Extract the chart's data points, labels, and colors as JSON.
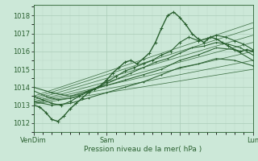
{
  "xlabel": "Pression niveau de la mer( hPa )",
  "ylim": [
    1011.5,
    1018.6
  ],
  "xlim": [
    0,
    72
  ],
  "yticks": [
    1012,
    1013,
    1014,
    1015,
    1016,
    1017,
    1018
  ],
  "xtick_positions": [
    0,
    24,
    48,
    72
  ],
  "xtick_labels": [
    "VenDim",
    "Sam",
    "",
    "Lun"
  ],
  "bg_color": "#cce8d8",
  "grid_major_color": "#aaccb8",
  "grid_minor_color": "#bcd8c8",
  "line_color": "#2a6030",
  "straight_lines": [
    {
      "x0": 0,
      "y0": 1013.05,
      "x1": 72,
      "y1": 1015.0
    },
    {
      "x0": 0,
      "y0": 1013.1,
      "x1": 72,
      "y1": 1015.5
    },
    {
      "x0": 0,
      "y0": 1013.15,
      "x1": 72,
      "y1": 1016.0
    },
    {
      "x0": 0,
      "y0": 1013.2,
      "x1": 72,
      "y1": 1016.5
    },
    {
      "x0": 0,
      "y0": 1013.3,
      "x1": 72,
      "y1": 1016.9
    },
    {
      "x0": 0,
      "y0": 1013.4,
      "x1": 72,
      "y1": 1017.3
    },
    {
      "x0": 0,
      "y0": 1013.5,
      "x1": 72,
      "y1": 1017.6
    }
  ],
  "wavy_series": [
    {
      "x": [
        0,
        2,
        4,
        6,
        8,
        10,
        12,
        14,
        16,
        18,
        20,
        22,
        24,
        26,
        28,
        30,
        32,
        34,
        36,
        38,
        40,
        42,
        44,
        46,
        48,
        50,
        52,
        54,
        56,
        58,
        60,
        62,
        64,
        66,
        68,
        70,
        72
      ],
      "y": [
        1013.0,
        1012.9,
        1012.6,
        1012.2,
        1012.1,
        1012.4,
        1012.8,
        1013.1,
        1013.4,
        1013.7,
        1013.9,
        1014.1,
        1014.4,
        1014.8,
        1015.1,
        1015.4,
        1015.5,
        1015.3,
        1015.6,
        1015.9,
        1016.5,
        1017.3,
        1018.0,
        1018.2,
        1017.9,
        1017.5,
        1017.0,
        1016.7,
        1016.5,
        1016.8,
        1016.7,
        1016.5,
        1016.3,
        1016.1,
        1016.0,
        1016.1,
        1016.0
      ]
    },
    {
      "x": [
        0,
        3,
        6,
        9,
        12,
        15,
        18,
        21,
        24,
        27,
        30,
        33,
        36,
        39,
        42,
        45,
        48,
        51,
        54,
        57,
        60,
        63,
        66,
        69,
        72
      ],
      "y": [
        1013.5,
        1013.3,
        1013.1,
        1013.0,
        1013.2,
        1013.5,
        1013.8,
        1014.0,
        1014.3,
        1014.6,
        1014.9,
        1015.1,
        1015.3,
        1015.5,
        1015.8,
        1016.0,
        1016.5,
        1016.8,
        1016.6,
        1016.7,
        1016.9,
        1016.8,
        1016.6,
        1016.4,
        1016.1
      ]
    },
    {
      "x": [
        0,
        4,
        8,
        12,
        16,
        20,
        24,
        28,
        32,
        36,
        40,
        44,
        48,
        52,
        56,
        60,
        64,
        68,
        72
      ],
      "y": [
        1013.8,
        1013.5,
        1013.3,
        1013.4,
        1013.6,
        1013.9,
        1014.2,
        1014.5,
        1014.8,
        1015.1,
        1015.4,
        1015.6,
        1015.9,
        1016.2,
        1016.3,
        1016.5,
        1016.4,
        1016.2,
        1015.8
      ]
    },
    {
      "x": [
        0,
        6,
        12,
        18,
        24,
        30,
        36,
        42,
        48,
        54,
        60,
        66,
        72
      ],
      "y": [
        1014.0,
        1013.7,
        1013.5,
        1013.8,
        1014.1,
        1014.4,
        1014.7,
        1015.0,
        1015.5,
        1015.8,
        1016.2,
        1016.1,
        1015.5
      ]
    },
    {
      "x": [
        0,
        6,
        12,
        18,
        24,
        30,
        36,
        42,
        48,
        54,
        60,
        66,
        72
      ],
      "y": [
        1013.2,
        1013.0,
        1013.1,
        1013.4,
        1013.7,
        1014.0,
        1014.3,
        1014.7,
        1015.1,
        1015.3,
        1015.6,
        1015.5,
        1015.2
      ]
    }
  ]
}
